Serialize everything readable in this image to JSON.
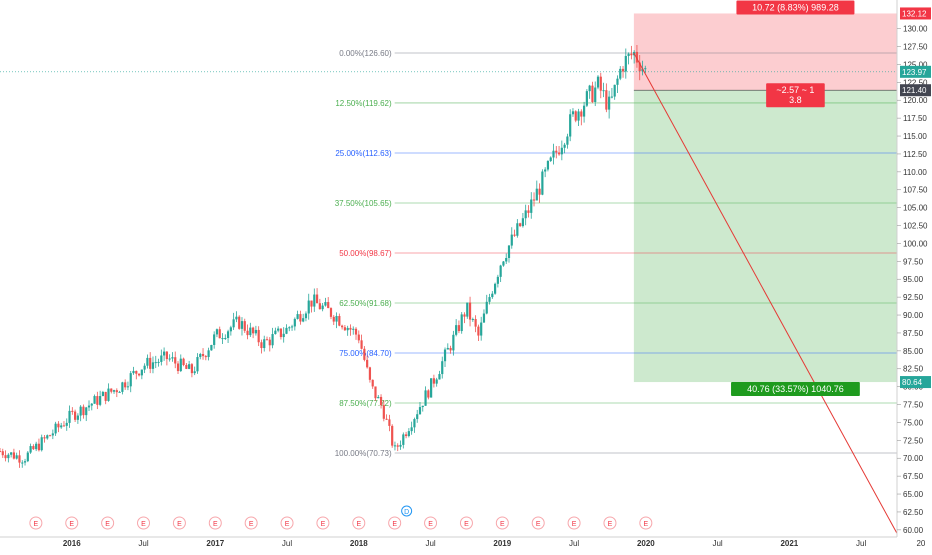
{
  "chart_data": {
    "type": "candlestick",
    "price_axis": {
      "min": 59,
      "max": 134,
      "ticks": [
        "60.00",
        "62.50",
        "65.00",
        "67.50",
        "70.00",
        "72.50",
        "75.00",
        "77.50",
        "80.00",
        "82.50",
        "85.00",
        "87.50",
        "90.00",
        "92.50",
        "95.00",
        "97.50",
        "100.00",
        "102.50",
        "105.00",
        "107.50",
        "110.00",
        "112.50",
        "115.00",
        "117.50",
        "120.00",
        "122.50",
        "125.00",
        "127.50",
        "130.00"
      ]
    },
    "time_axis": {
      "start": "2015-07",
      "end": "2021-10",
      "ticks": [
        {
          "label": "2016",
          "date": "2016-01"
        },
        {
          "label": "Jul",
          "date": "2016-07"
        },
        {
          "label": "2017",
          "date": "2017-01"
        },
        {
          "label": "Jul",
          "date": "2017-07"
        },
        {
          "label": "2018",
          "date": "2018-01"
        },
        {
          "label": "Jul",
          "date": "2018-07"
        },
        {
          "label": "2019",
          "date": "2019-01"
        },
        {
          "label": "Jul",
          "date": "2019-07"
        },
        {
          "label": "2020",
          "date": "2020-01"
        },
        {
          "label": "Jul",
          "date": "2020-07"
        },
        {
          "label": "2021",
          "date": "2021-01"
        },
        {
          "label": "Jul",
          "date": "2021-07"
        },
        {
          "label": "20",
          "date": "2021-12"
        }
      ]
    },
    "price_series": [
      {
        "date": "2015-07",
        "price": 71
      },
      {
        "date": "2015-09",
        "price": 70
      },
      {
        "date": "2015-11",
        "price": 73
      },
      {
        "date": "2016-01",
        "price": 76
      },
      {
        "date": "2016-03",
        "price": 78
      },
      {
        "date": "2016-05",
        "price": 80
      },
      {
        "date": "2016-07",
        "price": 83
      },
      {
        "date": "2016-09",
        "price": 84
      },
      {
        "date": "2016-11",
        "price": 82
      },
      {
        "date": "2017-01",
        "price": 87
      },
      {
        "date": "2017-03",
        "price": 89
      },
      {
        "date": "2017-05",
        "price": 86
      },
      {
        "date": "2017-07",
        "price": 88
      },
      {
        "date": "2017-09",
        "price": 92
      },
      {
        "date": "2017-11",
        "price": 90
      },
      {
        "date": "2018-01",
        "price": 87
      },
      {
        "date": "2018-02",
        "price": 80
      },
      {
        "date": "2018-03",
        "price": 77
      },
      {
        "date": "2018-04",
        "price": 71
      },
      {
        "date": "2018-05",
        "price": 74
      },
      {
        "date": "2018-07",
        "price": 80
      },
      {
        "date": "2018-09",
        "price": 87
      },
      {
        "date": "2018-10",
        "price": 91
      },
      {
        "date": "2018-11",
        "price": 87
      },
      {
        "date": "2018-12",
        "price": 93
      },
      {
        "date": "2019-01",
        "price": 98
      },
      {
        "date": "2019-03",
        "price": 104
      },
      {
        "date": "2019-05",
        "price": 111
      },
      {
        "date": "2019-07",
        "price": 118
      },
      {
        "date": "2019-09",
        "price": 122
      },
      {
        "date": "2019-10",
        "price": 119
      },
      {
        "date": "2019-11",
        "price": 125
      },
      {
        "date": "2019-12",
        "price": 126.6
      },
      {
        "date": "2020-01",
        "price": 123.97
      }
    ],
    "fibonacci": [
      {
        "label": "0.00%(126.60)",
        "value": 126.6,
        "color": "#787b86"
      },
      {
        "label": "12.50%(119.62)",
        "value": 119.62,
        "color": "#4caf50"
      },
      {
        "label": "25.00%(112.63)",
        "value": 112.63,
        "color": "#2962ff"
      },
      {
        "label": "37.50%(105.65)",
        "value": 105.65,
        "color": "#4caf50"
      },
      {
        "label": "50.00%(98.67)",
        "value": 98.67,
        "color": "#f23645"
      },
      {
        "label": "62.50%(91.68)",
        "value": 91.68,
        "color": "#4caf50"
      },
      {
        "label": "75.00%(84.70)",
        "value": 84.7,
        "color": "#2962ff"
      },
      {
        "label": "87.50%(77.72)",
        "value": 77.72,
        "color": "#4caf50"
      },
      {
        "label": "100.00%(70.73)",
        "value": 70.73,
        "color": "#787b86"
      }
    ],
    "position": {
      "start_date": "2019-12",
      "end_date": "2021-10",
      "entry": 121.4,
      "stop": 132.12,
      "target": 80.64,
      "risk_label": "10.72 (8.83%) 989.28",
      "reward_label": "40.76 (33.57%) 1040.76",
      "ratio_label_line1": "~2.57 ~ 1",
      "ratio_label_line2": "3.8"
    },
    "trend_line": {
      "from": {
        "date": "2019-12",
        "price": 126.6
      },
      "to": {
        "date": "2021-10",
        "price": 59.5
      }
    },
    "price_labels": [
      {
        "text": "132.12",
        "value": 132.12,
        "bg": "#f23645"
      },
      {
        "text": "123.97",
        "value": 123.97,
        "bg": "#26a69a"
      },
      {
        "text": "121.40",
        "value": 121.4,
        "bg": "#434651"
      },
      {
        "text": "80.64",
        "value": 80.64,
        "bg": "#26a69a"
      }
    ],
    "current_price": 123.97,
    "events": [
      {
        "label": "E",
        "date": "2015-10"
      },
      {
        "label": "E",
        "date": "2016-01"
      },
      {
        "label": "E",
        "date": "2016-04"
      },
      {
        "label": "E",
        "date": "2016-07"
      },
      {
        "label": "E",
        "date": "2016-10"
      },
      {
        "label": "E",
        "date": "2017-01"
      },
      {
        "label": "E",
        "date": "2017-04"
      },
      {
        "label": "E",
        "date": "2017-07"
      },
      {
        "label": "E",
        "date": "2017-10"
      },
      {
        "label": "E",
        "date": "2018-01"
      },
      {
        "label": "E",
        "date": "2018-04"
      },
      {
        "label": "E",
        "date": "2018-07"
      },
      {
        "label": "E",
        "date": "2018-10"
      },
      {
        "label": "E",
        "date": "2019-01"
      },
      {
        "label": "E",
        "date": "2019-04"
      },
      {
        "label": "E",
        "date": "2019-07"
      },
      {
        "label": "E",
        "date": "2019-10"
      },
      {
        "label": "E",
        "date": "2020-01"
      }
    ],
    "dividend_marker": {
      "label": "D",
      "date": "2018-05"
    },
    "colors": {
      "up": "#26a69a",
      "down": "#ef5350",
      "risk_zone": "rgba(242,54,69,0.25)",
      "reward_zone": "rgba(76,175,80,0.28)",
      "trend_line": "#e53935",
      "grid": "#e6e6e6"
    }
  }
}
